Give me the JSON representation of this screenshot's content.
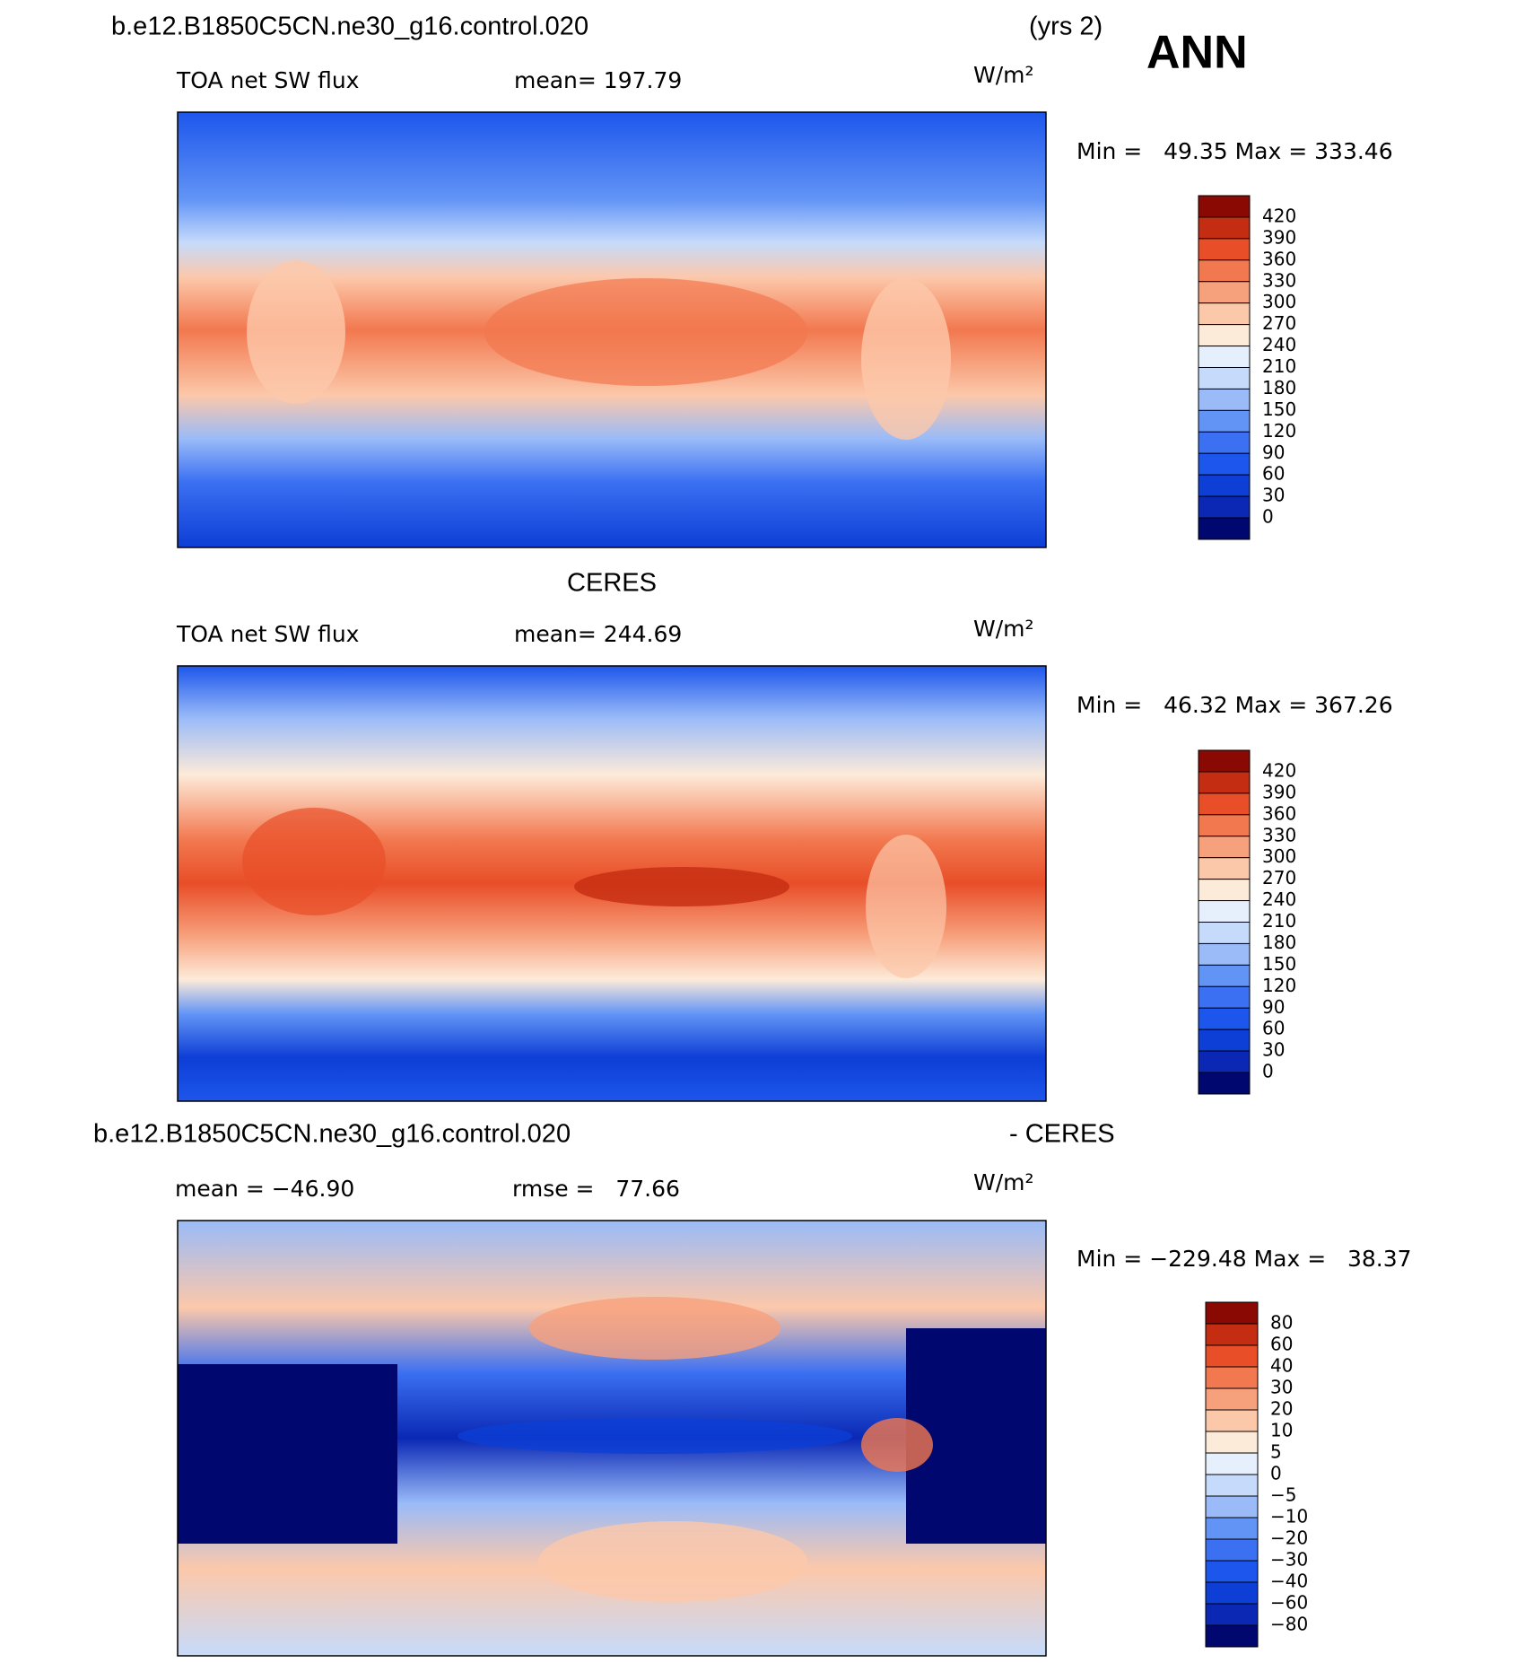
{
  "header": {
    "case": "b.e12.B1850C5CN.ne30_g16.control.020",
    "years": "(yrs 2)",
    "season": "ANN"
  },
  "panels": [
    {
      "variable": "TOA net SW flux",
      "mean": "mean= 197.79",
      "units": "W/m²",
      "range": "Min =   49.35 Max = 333.46",
      "colorbar": {
        "labels": [
          "420",
          "390",
          "360",
          "330",
          "300",
          "270",
          "240",
          "210",
          "180",
          "150",
          "120",
          "90",
          "60",
          "30",
          "0"
        ],
        "colors": [
          "#8a0a03",
          "#c52d12",
          "#e84e28",
          "#f2784f",
          "#f7a07c",
          "#fcc8aa",
          "#fdebd9",
          "#e6effc",
          "#c6dbfb",
          "#9abbf8",
          "#6294f6",
          "#3b70f2",
          "#1d56ec",
          "#0d3ed6",
          "#0a28b4",
          "#00076e"
        ]
      }
    },
    {
      "title": "CERES",
      "variable": "TOA net SW flux",
      "mean": "mean= 244.69",
      "units": "W/m²",
      "range": "Min =   46.32 Max = 367.26",
      "colorbar": {
        "labels": [
          "420",
          "390",
          "360",
          "330",
          "300",
          "270",
          "240",
          "210",
          "180",
          "150",
          "120",
          "90",
          "60",
          "30",
          "0"
        ],
        "colors": [
          "#8a0a03",
          "#c52d12",
          "#e84e28",
          "#f2784f",
          "#f7a07c",
          "#fcc8aa",
          "#fdebd9",
          "#e6effc",
          "#c6dbfb",
          "#9abbf8",
          "#6294f6",
          "#3b70f2",
          "#1d56ec",
          "#0d3ed6",
          "#0a28b4",
          "#00076e"
        ]
      }
    },
    {
      "title_left": "b.e12.B1850C5CN.ne30_g16.control.020",
      "title_right": "- CERES",
      "mean": "mean = −46.90",
      "rmse": "rmse =   77.66",
      "units": "W/m²",
      "range": "Min = −229.48 Max =   38.37",
      "colorbar": {
        "labels": [
          "80",
          "60",
          "40",
          "30",
          "20",
          "10",
          "5",
          "0",
          "−5",
          "−10",
          "−20",
          "−30",
          "−40",
          "−60",
          "−80"
        ],
        "colors": [
          "#8a0a03",
          "#c52d12",
          "#e84e28",
          "#f2784f",
          "#f7a07c",
          "#fcc8aa",
          "#fdebd9",
          "#e6effc",
          "#c6dbfb",
          "#9abbf8",
          "#6294f6",
          "#3b70f2",
          "#1d56ec",
          "#0d3ed6",
          "#0a28b4",
          "#00076e"
        ]
      }
    }
  ]
}
